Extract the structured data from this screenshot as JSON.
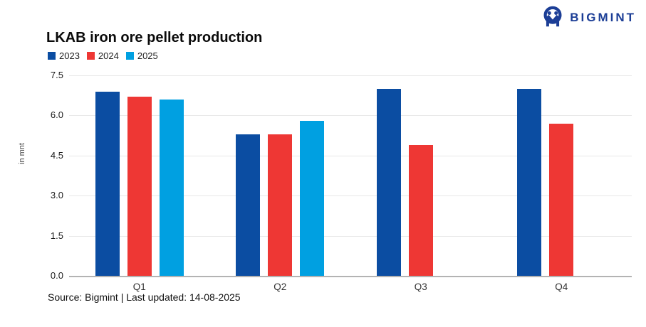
{
  "header": {
    "title": "LKAB iron ore pellet production",
    "logo_text": "BIGMINT"
  },
  "footer": {
    "source_text": "Source: Bigmint | Last updated: 14-08-2025"
  },
  "chart_data": {
    "type": "bar",
    "title": "LKAB iron ore pellet production",
    "categories": [
      "Q1",
      "Q2",
      "Q3",
      "Q4"
    ],
    "series": [
      {
        "name": "2023",
        "color": "#0b4da2",
        "values": [
          6.9,
          5.3,
          7.0,
          7.0
        ]
      },
      {
        "name": "2024",
        "color": "#ee3734",
        "values": [
          6.7,
          5.3,
          4.9,
          5.7
        ]
      },
      {
        "name": "2025",
        "color": "#00a0e1",
        "values": [
          6.6,
          5.8,
          null,
          null
        ]
      }
    ],
    "xlabel": "",
    "ylabel": "in mnt",
    "ylim": [
      0,
      7.5
    ],
    "yticks": [
      0,
      1.5,
      3.0,
      4.5,
      6.0,
      7.5
    ],
    "ytick_labels": [
      "0.0",
      "1.5",
      "3.0",
      "4.5",
      "6.0",
      "7.5"
    ],
    "grid": true,
    "legend_position": "top-left"
  },
  "colors": {
    "logo_navy": "#1c3e96",
    "gridline": "#e8e8e8",
    "zero_line": "#b3b3b3"
  }
}
